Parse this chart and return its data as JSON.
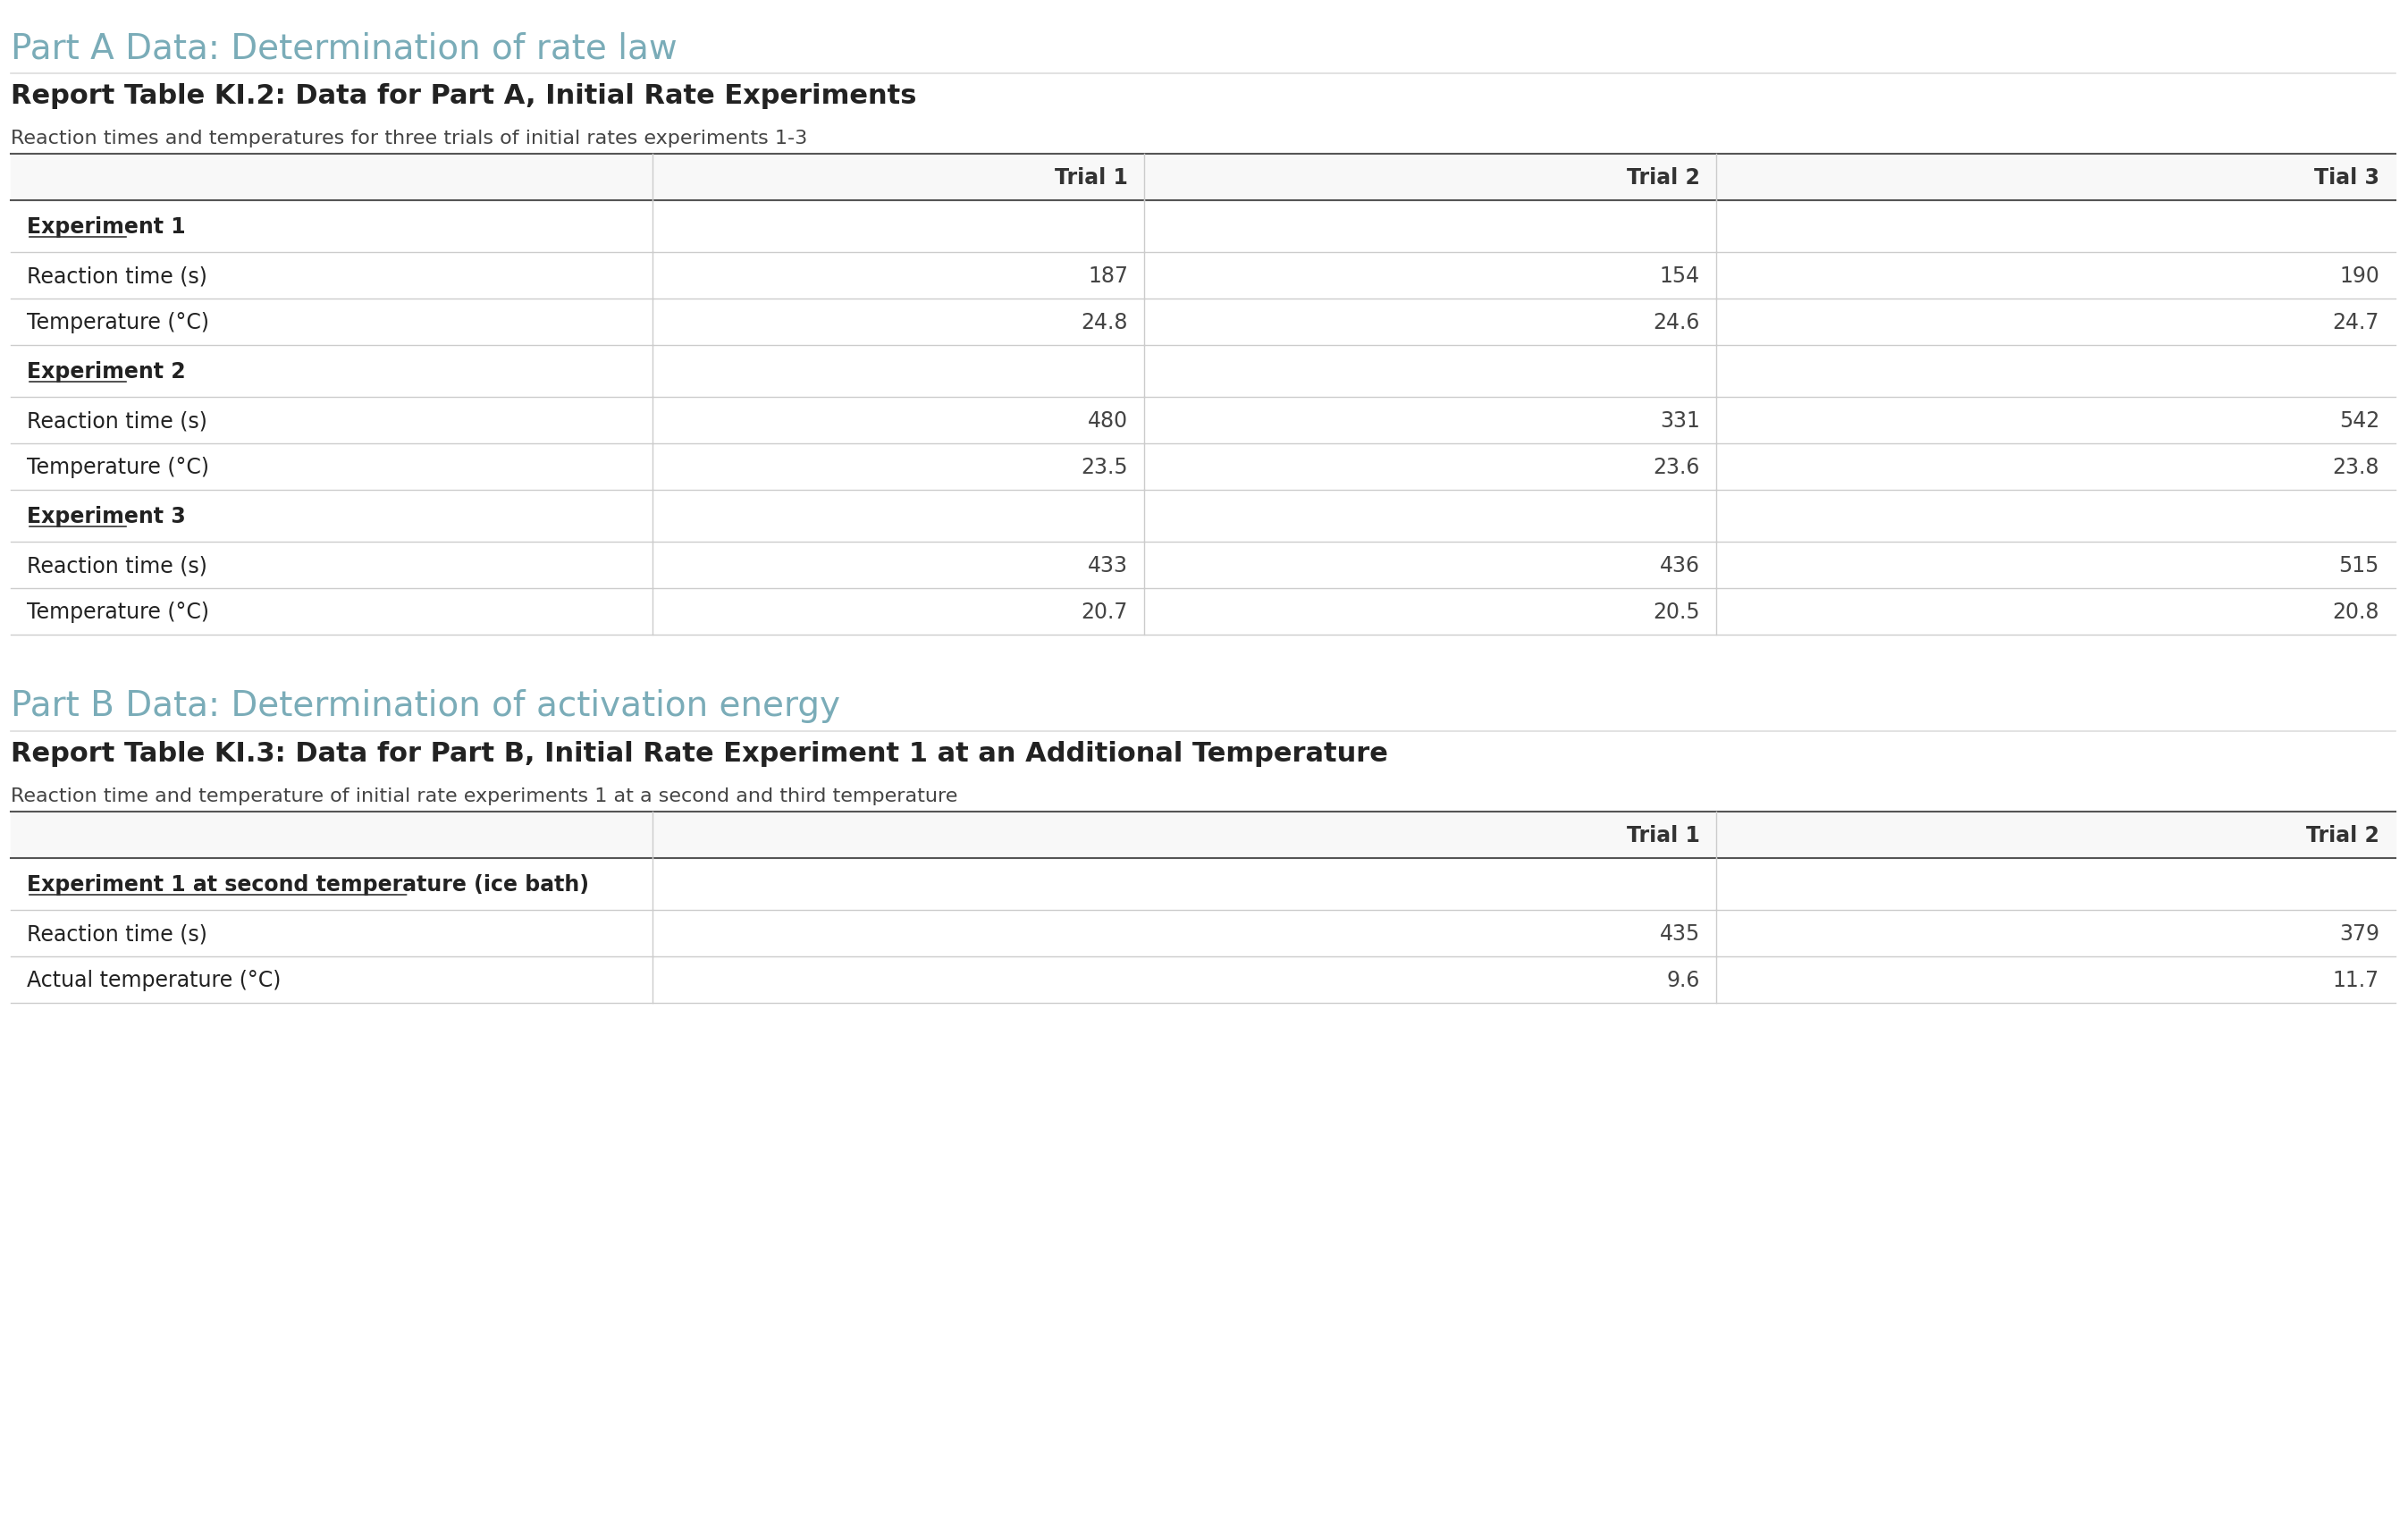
{
  "part_a_title": "Part A Data: Determination of rate law",
  "part_a_subtitle": "Report Table KI.2: Data for Part A, Initial Rate Experiments",
  "part_a_caption": "Reaction times and temperatures for three trials of initial rates experiments 1-3",
  "part_a_headers": [
    "",
    "Trial 1",
    "Trial 2",
    "Tial 3"
  ],
  "part_a_rows": [
    {
      "label": "Experiment 1",
      "is_header": true,
      "values": [
        "",
        "",
        ""
      ]
    },
    {
      "label": "Reaction time (s)",
      "is_header": false,
      "values": [
        "187",
        "154",
        "190"
      ]
    },
    {
      "label": "Temperature (°C)",
      "is_header": false,
      "values": [
        "24.8",
        "24.6",
        "24.7"
      ]
    },
    {
      "label": "Experiment 2",
      "is_header": true,
      "values": [
        "",
        "",
        ""
      ]
    },
    {
      "label": "Reaction time (s)",
      "is_header": false,
      "values": [
        "480",
        "331",
        "542"
      ]
    },
    {
      "label": "Temperature (°C)",
      "is_header": false,
      "values": [
        "23.5",
        "23.6",
        "23.8"
      ]
    },
    {
      "label": "Experiment 3",
      "is_header": true,
      "values": [
        "",
        "",
        ""
      ]
    },
    {
      "label": "Reaction time (s)",
      "is_header": false,
      "values": [
        "433",
        "436",
        "515"
      ]
    },
    {
      "label": "Temperature (°C)",
      "is_header": false,
      "values": [
        "20.7",
        "20.5",
        "20.8"
      ]
    }
  ],
  "part_b_title": "Part B Data: Determination of activation energy",
  "part_b_subtitle": "Report Table KI.3: Data for Part B, Initial Rate Experiment 1 at an Additional Temperature",
  "part_b_caption": "Reaction time and temperature of initial rate experiments 1 at a second and third temperature",
  "part_b_headers": [
    "",
    "Trial 1",
    "Trial 2"
  ],
  "part_b_rows": [
    {
      "label": "Experiment 1 at second temperature (ice bath)",
      "is_header": true,
      "values": [
        "",
        ""
      ]
    },
    {
      "label": "Reaction time (s)",
      "is_header": false,
      "values": [
        "435",
        "379"
      ]
    },
    {
      "label": "Actual temperature (°C)",
      "is_header": false,
      "values": [
        "9.6",
        "11.7"
      ]
    }
  ],
  "bg_color": "#ffffff",
  "header_row_bg": "#f5f5f5",
  "table_border_color": "#cccccc",
  "part_a_title_color": "#7aacb8",
  "part_b_title_color": "#7aacb8",
  "subtitle_color": "#222222",
  "caption_color": "#444444",
  "row_label_color": "#222222",
  "experiment_label_color": "#222222",
  "value_color": "#444444",
  "header_text_color": "#333333",
  "underline_color": "#333333"
}
